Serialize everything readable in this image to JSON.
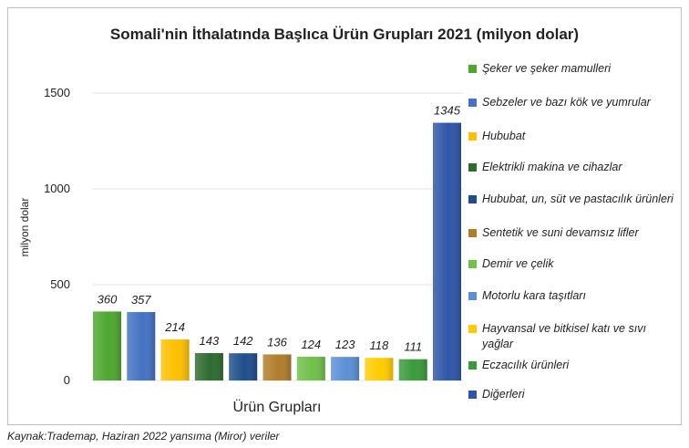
{
  "source_note": "Kaynak:Trademap, Haziran 2022  yansıma (Miror) veriler",
  "chart_data": {
    "type": "bar",
    "title": "Somali'nin İthalatında Başlıca Ürün Grupları 2021 (milyon dolar)",
    "xlabel": "Ürün Grupları",
    "ylabel": "milyon dolar",
    "ylim": [
      0,
      1500
    ],
    "yticks": [
      0,
      500,
      1000,
      1500
    ],
    "grid": true,
    "legend_position": "right",
    "categories": [
      "Şeker ve şeker mamulleri",
      "Sebzeler ve bazı kök ve yumrular",
      "Hububat",
      "Elektrikli makina ve cihazlar",
      "Hububat, un, süt ve pastacılık ürünleri",
      "Sentetik ve suni devamsız lifler",
      "Demir ve çelik",
      "Motorlu kara taşıtları",
      "Hayvansal ve bitkisel katı ve sıvı yağlar",
      "Eczacılık ürünleri",
      "Diğerleri"
    ],
    "values": [
      360,
      357,
      214,
      143,
      142,
      136,
      124,
      123,
      118,
      111,
      1345
    ],
    "colors": [
      "#4ea72e",
      "#4472c4",
      "#ffc000",
      "#2e6b2e",
      "#1f4e8c",
      "#b07d2b",
      "#70c04a",
      "#5b8fd6",
      "#ffcc00",
      "#3a9a3a",
      "#2f55a8"
    ]
  }
}
